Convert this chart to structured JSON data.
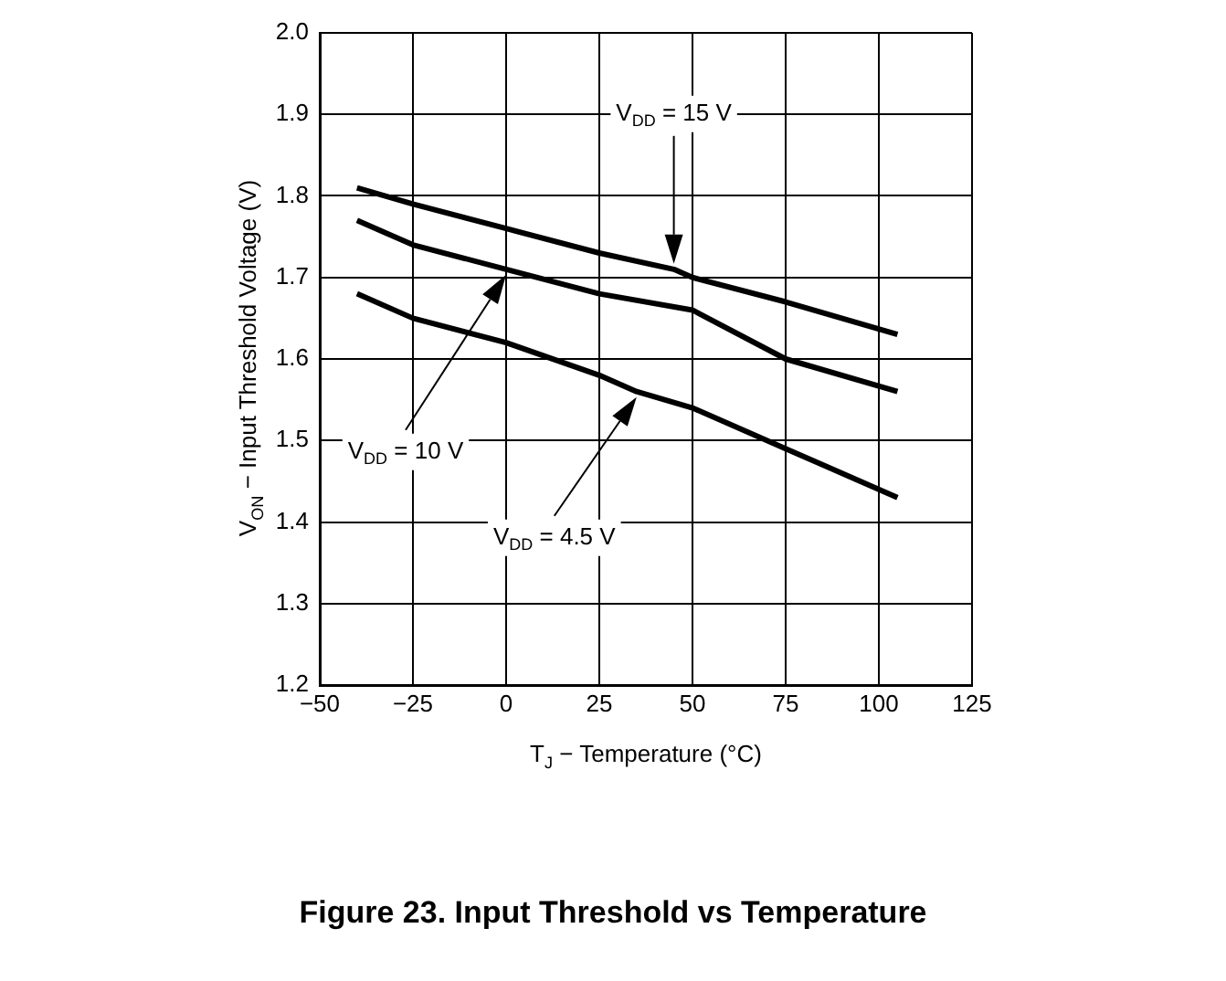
{
  "chart_data": {
    "type": "line",
    "title": "Figure 23. Input Threshold vs Temperature",
    "xlabel": "T$_{J}$ − Temperature (°C)",
    "ylabel": "V$_{ON}$ − Input Threshold Voltage (V)",
    "series": [
      {
        "name": "V$_{DD}$ = 15 V",
        "color": "#000000",
        "x": [
          -40,
          -25,
          0,
          25,
          45,
          50,
          75,
          105
        ],
        "values": [
          1.81,
          1.79,
          1.76,
          1.73,
          1.71,
          1.7,
          1.67,
          1.63
        ]
      },
      {
        "name": "V$_{DD}$ = 10 V",
        "color": "#000000",
        "x": [
          -40,
          -25,
          0,
          25,
          50,
          75,
          105
        ],
        "values": [
          1.77,
          1.74,
          1.71,
          1.68,
          1.66,
          1.6,
          1.56
        ]
      },
      {
        "name": "V$_{DD}$ = 4.5 V",
        "color": "#000000",
        "x": [
          -40,
          -25,
          0,
          25,
          35,
          50,
          75,
          105
        ],
        "values": [
          1.68,
          1.65,
          1.62,
          1.58,
          1.56,
          1.54,
          1.49,
          1.43
        ]
      }
    ],
    "xlim": [
      -50,
      125
    ],
    "xticks": [
      {
        "value": -50,
        "label": "−50"
      },
      {
        "value": -25,
        "label": "−25"
      },
      0,
      25,
      50,
      75,
      100,
      125
    ],
    "ylim": [
      1.2,
      2.0
    ],
    "yticks": [
      {
        "value": 1.2,
        "label": "1.2"
      },
      {
        "value": 1.3,
        "label": "1.3"
      },
      {
        "value": 1.4,
        "label": "1.4"
      },
      {
        "value": 1.5,
        "label": "1.5"
      },
      {
        "value": 1.6,
        "label": "1.6"
      },
      {
        "value": 1.7,
        "label": "1.7"
      },
      {
        "value": 1.8,
        "label": "1.8"
      },
      {
        "value": 1.9,
        "label": "1.9"
      },
      {
        "value": 2.0,
        "label": "2.0"
      }
    ],
    "grid": true,
    "legend": false,
    "marker": "none",
    "line_style": "solid"
  }
}
